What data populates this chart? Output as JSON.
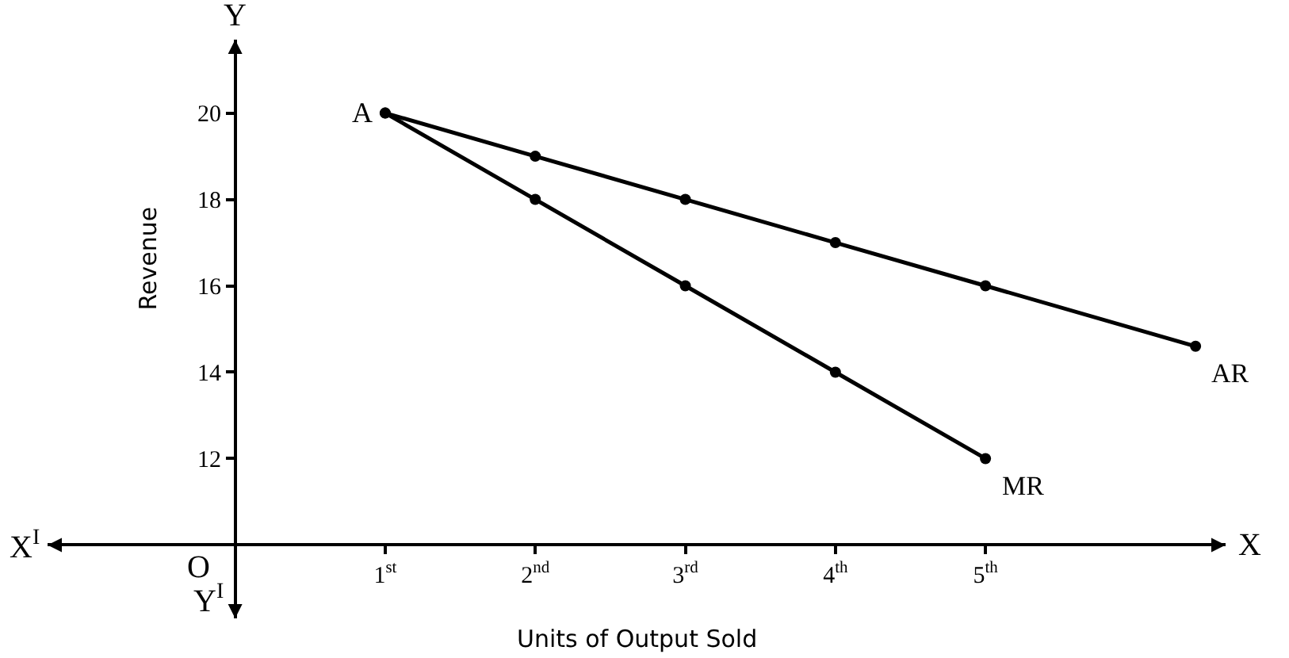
{
  "chart_data": {
    "type": "line",
    "xlabel": "Units of Output Sold",
    "ylabel": "Revenue",
    "xlim": [
      -1.25,
      6.6
    ],
    "ylim": [
      8.3,
      21.7
    ],
    "xticks": [
      {
        "value": 1,
        "label": "1$^{st}$"
      },
      {
        "value": 2,
        "label": "2$^{nd}$"
      },
      {
        "value": 3,
        "label": "3$^{rd}$"
      },
      {
        "value": 4,
        "label": "4$^{th}$"
      },
      {
        "value": 5,
        "label": "5$^{th}$"
      }
    ],
    "yticks": [
      12,
      14,
      16,
      18,
      20
    ],
    "series": [
      {
        "name": "AR",
        "color": "#000000",
        "x": [
          1,
          2,
          3,
          4,
          5,
          6.4
        ],
        "values": [
          20,
          19,
          18,
          17,
          16,
          14.6
        ]
      },
      {
        "name": "MR",
        "color": "#000000",
        "x": [
          1,
          2,
          3,
          4,
          5
        ],
        "values": [
          20,
          18,
          16,
          14,
          12
        ]
      }
    ],
    "marker": "circle",
    "line_style": "solid",
    "grid": false,
    "legend": false,
    "annotations": [
      {
        "text": "A",
        "x": 1,
        "y": 20
      },
      "X",
      "Y",
      "X$^{I}$",
      "Y$^{I}$",
      "O"
    ]
  }
}
